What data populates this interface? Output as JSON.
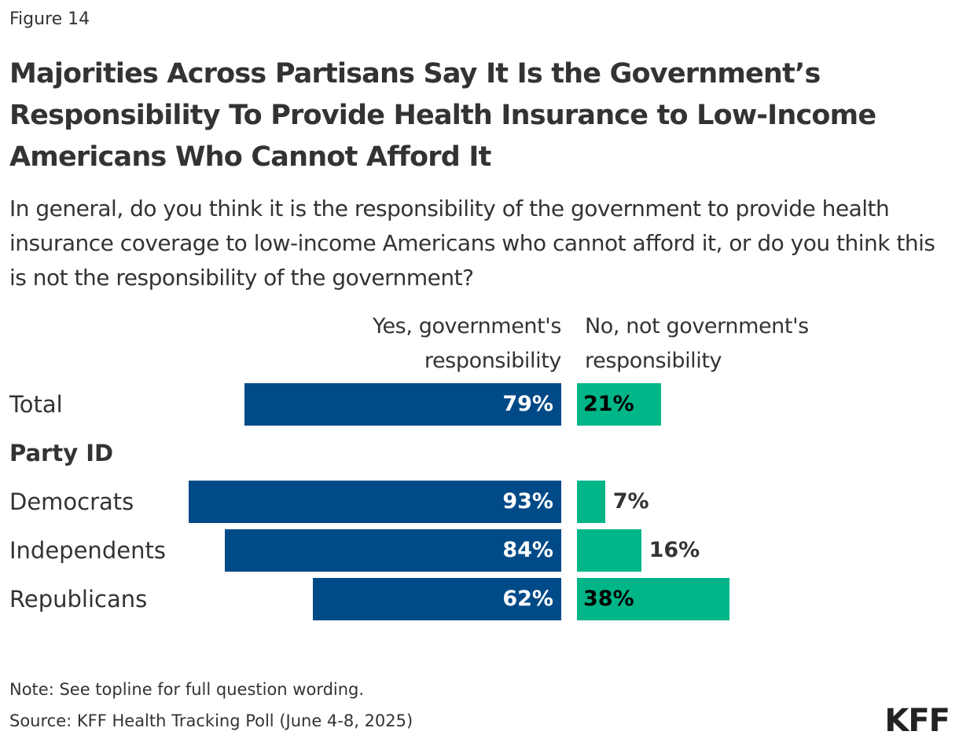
{
  "figure_label": "Figure 14",
  "chart_data": {
    "type": "bar",
    "title": "Majorities Across Partisans Say It Is the Government’s Responsibility To Provide Health Insurance to Low-Income Americans Who Cannot Afford It",
    "subtitle": "In general, do you think it is the responsibility of the government to provide health insurance coverage to low-income Americans who cannot afford it, or do you think this is not the responsibility of the government?",
    "group_label": "Party ID",
    "categories": [
      "Total",
      "Democrats",
      "Independents",
      "Republicans"
    ],
    "series": [
      {
        "name": "Yes, government's responsibility",
        "values": [
          79,
          93,
          84,
          62
        ],
        "labels": [
          "79%",
          "93%",
          "84%",
          "62%"
        ],
        "color": "#004a88"
      },
      {
        "name": "No, not government's responsibility",
        "values": [
          21,
          7,
          16,
          38
        ],
        "labels": [
          "21%",
          "7%",
          "16%",
          "38%"
        ],
        "color": "#00b588"
      }
    ],
    "xlim": [
      0,
      100
    ]
  },
  "note": "Note: See topline for full question wording.",
  "source": "Source: KFF Health Tracking Poll (June 4-8, 2025)",
  "logo": "KFF"
}
